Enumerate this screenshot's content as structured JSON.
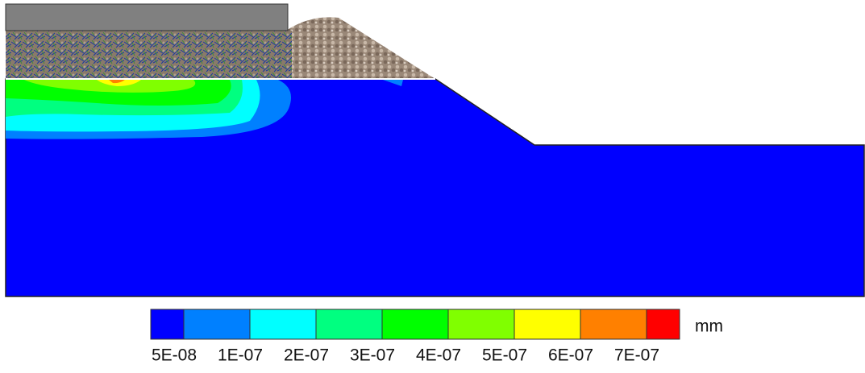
{
  "legend": {
    "unit": "mm",
    "colors": [
      "#0000ff",
      "#0080ff",
      "#00ffff",
      "#00ff80",
      "#00ff00",
      "#80ff00",
      "#ffff00",
      "#ff8000",
      "#ff0000"
    ],
    "labels": [
      "5E-08",
      "1E-07",
      "2E-07",
      "3E-07",
      "4E-07",
      "5E-07",
      "6E-07",
      "7E-07"
    ]
  }
}
